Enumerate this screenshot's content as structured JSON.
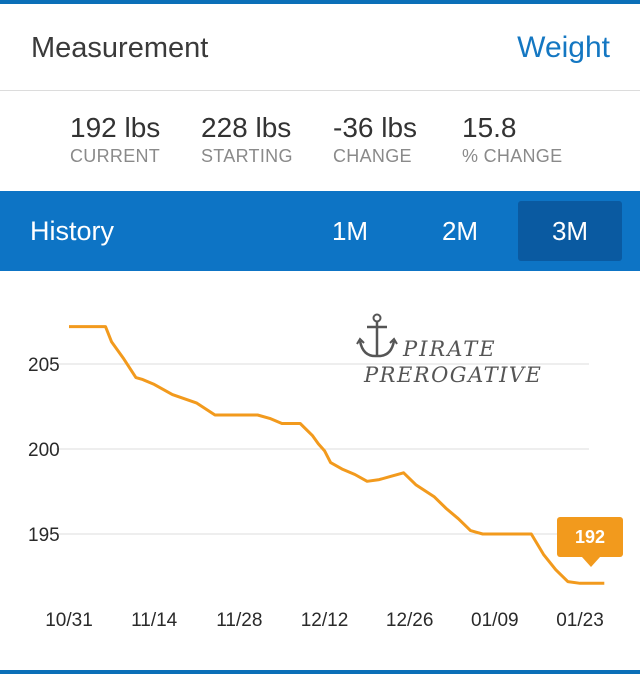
{
  "header": {
    "title": "Measurement",
    "link_label": "Weight"
  },
  "stats": [
    {
      "value": "192 lbs",
      "label": "CURRENT"
    },
    {
      "value": "228 lbs",
      "label": "STARTING"
    },
    {
      "value": "-36 lbs",
      "label": "CHANGE"
    },
    {
      "value": "15.8",
      "label": "% CHANGE"
    }
  ],
  "history": {
    "label": "History",
    "tabs": [
      {
        "label": "1M"
      },
      {
        "label": "2M"
      },
      {
        "label": "3M"
      }
    ],
    "active_tab": "3M"
  },
  "watermark": {
    "line1": "PIRATE",
    "line2": "PREROGATIVE"
  },
  "tooltip": {
    "value": "192"
  },
  "colors": {
    "accent": "#0d74c5",
    "line": "#f29a1d",
    "link": "#1477c2"
  },
  "chart_data": {
    "type": "line",
    "x_tick_labels": [
      "10/31",
      "11/14",
      "11/28",
      "12/12",
      "12/26",
      "01/09",
      "01/23"
    ],
    "x": [
      "10/31",
      "11/06",
      "11/07",
      "11/09",
      "11/11",
      "11/12",
      "11/14",
      "11/17",
      "11/21",
      "11/24",
      "11/28",
      "12/01",
      "12/03",
      "12/05",
      "12/08",
      "12/10",
      "12/11",
      "12/12",
      "12/13",
      "12/15",
      "12/17",
      "12/19",
      "12/21",
      "12/23",
      "12/25",
      "12/27",
      "12/30",
      "01/01",
      "01/03",
      "01/05",
      "01/06",
      "01/07",
      "01/09",
      "01/11",
      "01/13",
      "01/15",
      "01/17",
      "01/19",
      "01/21",
      "01/23",
      "01/25",
      "01/27"
    ],
    "y": [
      207.2,
      207.2,
      206.3,
      205.3,
      204.2,
      204.1,
      203.8,
      203.2,
      202.7,
      202.0,
      202.0,
      202.0,
      201.8,
      201.5,
      201.5,
      200.8,
      200.3,
      199.9,
      199.2,
      198.8,
      198.5,
      198.1,
      198.2,
      198.4,
      198.6,
      197.9,
      197.2,
      196.5,
      195.9,
      195.2,
      195.1,
      195.0,
      195.0,
      195.0,
      195.0,
      195.0,
      193.8,
      192.9,
      192.2,
      192.1,
      192.1,
      192.1
    ],
    "y_ticks": [
      195,
      200,
      205
    ],
    "ylim": [
      191.5,
      208.5
    ],
    "grid": true,
    "series": [
      {
        "color": "#f29a1d"
      }
    ]
  }
}
